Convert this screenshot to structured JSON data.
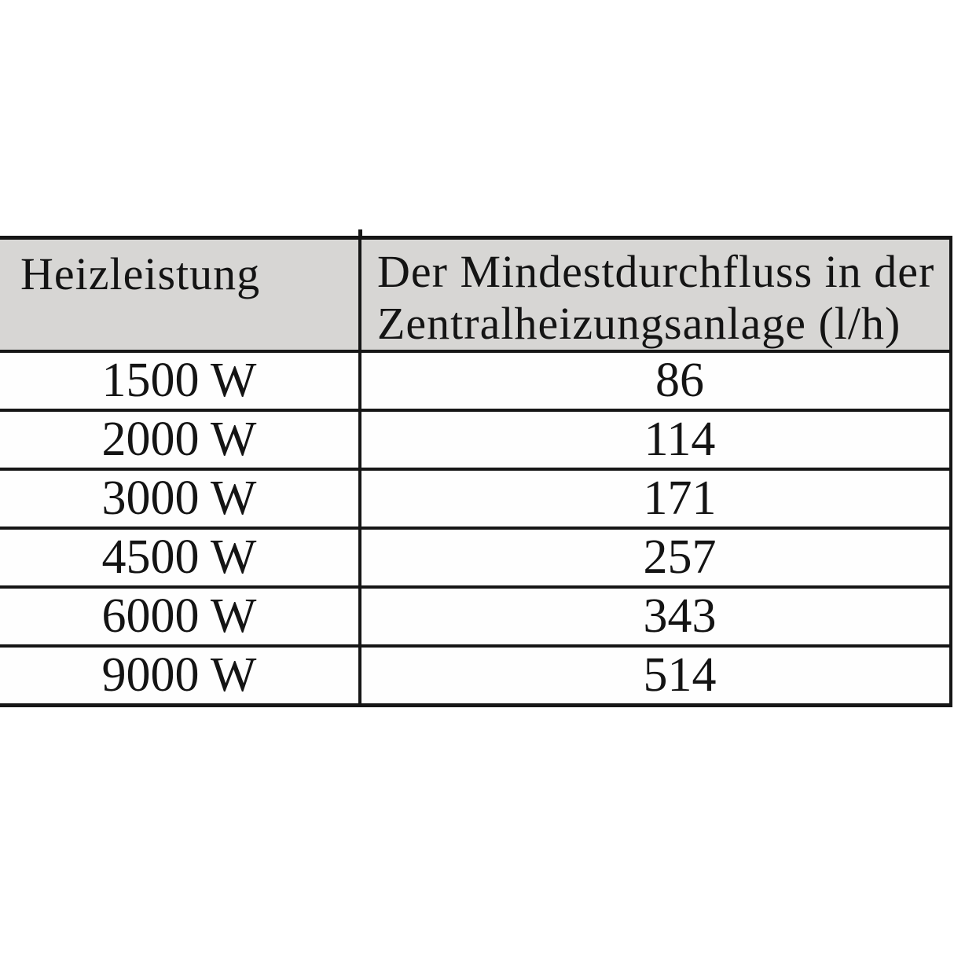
{
  "page": {
    "background": "#ffffff"
  },
  "table": {
    "header": {
      "power_label": "Heizleistung",
      "flow_label_line1": "Der Mindestdurchfluss in der",
      "flow_label_line2": "Zentralheizungsanlage (l/h)"
    },
    "rows": [
      {
        "power": "1500 W",
        "flow": "86"
      },
      {
        "power": "2000 W",
        "flow": "114"
      },
      {
        "power": "3000 W",
        "flow": "171"
      },
      {
        "power": "4500 W",
        "flow": "257"
      },
      {
        "power": "6000 W",
        "flow": "343"
      },
      {
        "power": "9000 W",
        "flow": "514"
      }
    ],
    "colors": {
      "header_bg": "#d7d6d4",
      "border": "#161616",
      "row_bg": "#fefefe",
      "text": "#141414"
    }
  },
  "chart_data": {
    "type": "table",
    "title": "",
    "columns": [
      "Heizleistung",
      "Der Mindestdurchfluss in der Zentralheizungsanlage (l/h)"
    ],
    "rows": [
      [
        "1500 W",
        86
      ],
      [
        "2000 W",
        114
      ],
      [
        "3000 W",
        171
      ],
      [
        "4500 W",
        257
      ],
      [
        "6000 W",
        343
      ],
      [
        "9000 W",
        514
      ]
    ]
  }
}
